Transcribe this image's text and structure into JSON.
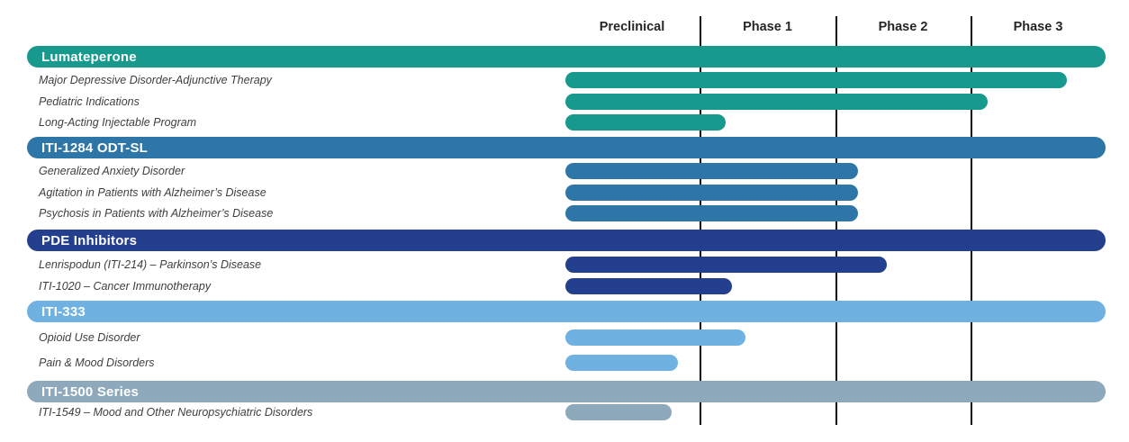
{
  "chart_data": {
    "type": "bar",
    "description": "Drug development pipeline chart; horizontal progress bars per program across development phases",
    "columns": [
      "Preclinical",
      "Phase 1",
      "Phase 2",
      "Phase 3"
    ],
    "grid": "vertical phase divider lines, black",
    "divider_color": "#0a0a0a",
    "sections": [
      {
        "name": "Lumateperone",
        "color": "#17998E",
        "programs": [
          {
            "label": "Major Depressive Disorder-Adjunctive Therapy",
            "progress_phases": 3.71,
            "phase_reached": "Phase 3"
          },
          {
            "label": "Pediatric Indications",
            "progress_phases": 3.13,
            "phase_reached": "Phase 3"
          },
          {
            "label": "Long-Acting Injectable Program",
            "progress_phases": 1.19,
            "phase_reached": "Phase 1"
          }
        ]
      },
      {
        "name": "ITI-1284 ODT-SL",
        "color": "#2E76A7",
        "programs": [
          {
            "label": "Generalized Anxiety Disorder",
            "progress_phases": 2.17,
            "phase_reached": "Phase 2"
          },
          {
            "label": "Agitation in Patients with Alzheimer’s Disease",
            "progress_phases": 2.17,
            "phase_reached": "Phase 2"
          },
          {
            "label": "Psychosis in Patients with Alzheimer’s Disease",
            "progress_phases": 2.17,
            "phase_reached": "Phase 2"
          }
        ]
      },
      {
        "name": "PDE Inhibitors",
        "color": "#233F8D",
        "programs": [
          {
            "label": "Lenrispodun (ITI-214) – Parkinson’s Disease",
            "progress_phases": 2.38,
            "phase_reached": "Phase 2"
          },
          {
            "label": "ITI-1020 – Cancer Immunotherapy",
            "progress_phases": 1.24,
            "phase_reached": "Phase 1"
          }
        ]
      },
      {
        "name": "ITI-333",
        "color": "#6FB2E1",
        "programs": [
          {
            "label": "Opioid Use Disorder",
            "progress_phases": 1.34,
            "phase_reached": "Phase 1"
          },
          {
            "label": "Pain & Mood Disorders",
            "progress_phases": 0.84,
            "phase_reached": "Preclinical"
          }
        ]
      },
      {
        "name": "ITI-1500 Series",
        "color": "#8DA9BB",
        "programs": [
          {
            "label": "ITI-1549 – Mood and Other Neuropsychiatric Disorders",
            "progress_phases": 0.79,
            "phase_reached": "Preclinical"
          }
        ]
      }
    ]
  }
}
